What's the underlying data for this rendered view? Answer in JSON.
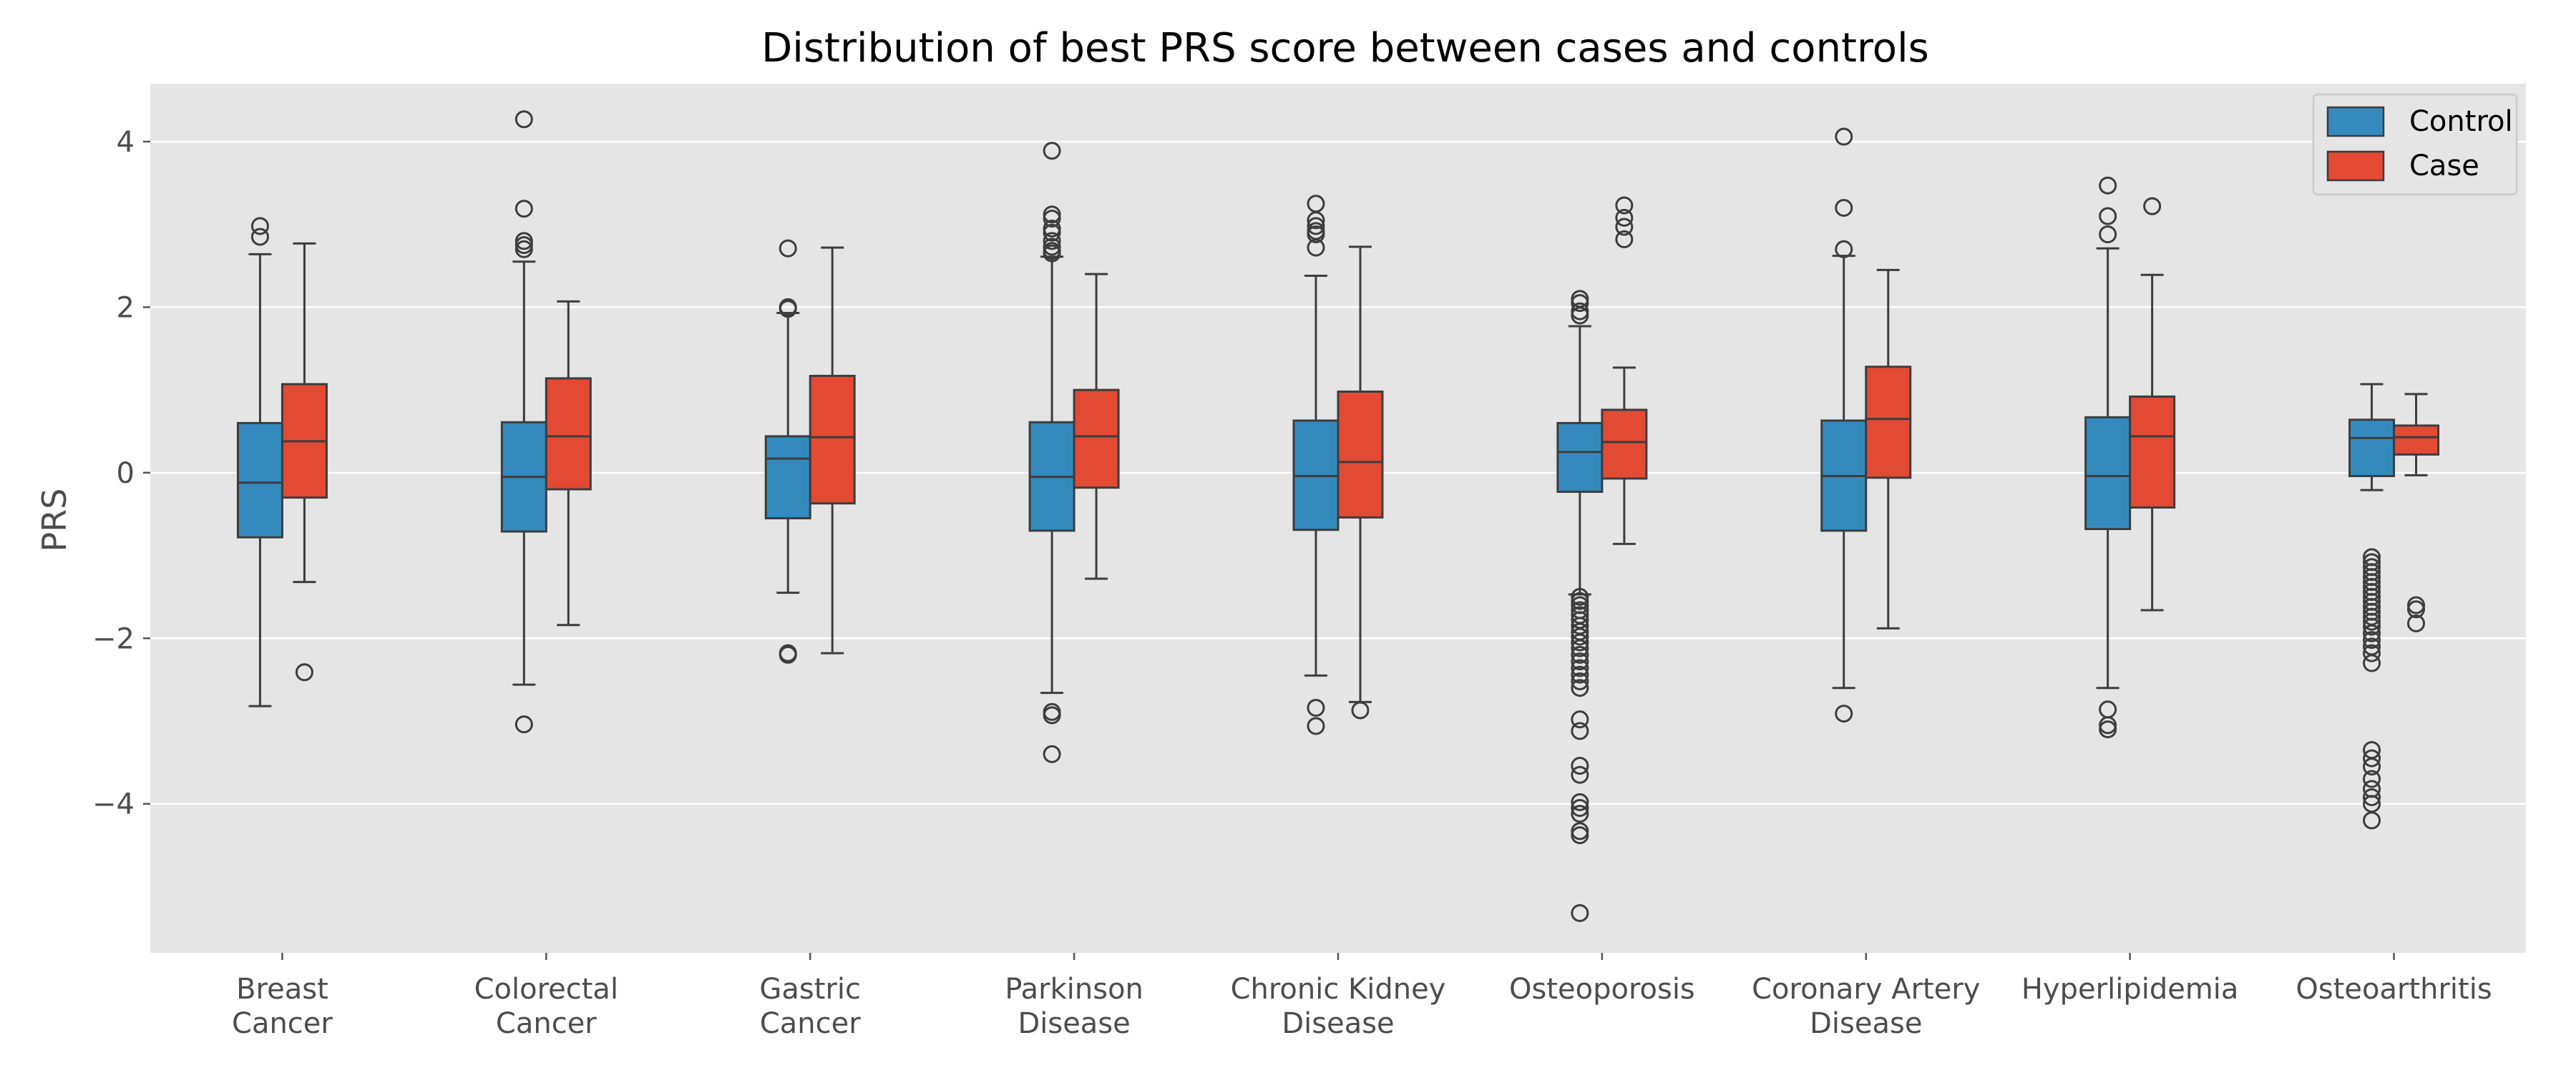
{
  "chart_data": {
    "type": "boxplot",
    "title": "Distribution of best PRS score between cases and controls",
    "xlabel": "",
    "ylabel": "PRS",
    "ylim": [
      -5.8,
      4.7
    ],
    "yticks": [
      4,
      2,
      0,
      -2,
      -4
    ],
    "ytick_labels": [
      "4",
      "2",
      "0",
      "−2",
      "−4"
    ],
    "grid": true,
    "legend_position": "top-right",
    "categories": [
      [
        "Breast",
        "Cancer"
      ],
      [
        "Colorectal",
        "Cancer"
      ],
      [
        "Gastric",
        "Cancer"
      ],
      [
        "Parkinson",
        "Disease"
      ],
      [
        "Chronic Kidney",
        "Disease"
      ],
      [
        "Osteoporosis"
      ],
      [
        "Coronary Artery",
        "Disease"
      ],
      [
        "Hyperlipidemia"
      ],
      [
        "Osteoarthritis"
      ]
    ],
    "series": [
      {
        "name": "Control",
        "color": "#348abd",
        "boxes": [
          {
            "q1": -0.78,
            "median": -0.12,
            "q3": 0.6,
            "whislo": -2.82,
            "whishi": 2.64,
            "fliers": [
              2.98,
              2.85
            ]
          },
          {
            "q1": -0.71,
            "median": -0.05,
            "q3": 0.61,
            "whislo": -2.56,
            "whishi": 2.55,
            "fliers": [
              4.27,
              3.19,
              2.8,
              2.75,
              2.7,
              -3.04
            ]
          },
          {
            "q1": -0.55,
            "median": 0.17,
            "q3": 0.44,
            "whislo": -1.45,
            "whishi": 1.93,
            "fliers": [
              2.71,
              2.0,
              1.98,
              -2.18,
              -2.2
            ]
          },
          {
            "q1": -0.7,
            "median": -0.05,
            "q3": 0.61,
            "whislo": -2.66,
            "whishi": 2.61,
            "fliers": [
              3.89,
              3.12,
              3.07,
              2.95,
              2.9,
              2.8,
              2.73,
              2.68,
              2.65,
              -2.89,
              -2.93,
              -3.4
            ]
          },
          {
            "q1": -0.69,
            "median": -0.04,
            "q3": 0.63,
            "whislo": -2.45,
            "whishi": 2.38,
            "fliers": [
              3.25,
              3.05,
              2.98,
              2.92,
              2.88,
              2.72,
              -2.84,
              -3.06
            ]
          },
          {
            "q1": -0.23,
            "median": 0.25,
            "q3": 0.6,
            "whislo": -1.47,
            "whishi": 1.77,
            "fliers": [
              2.1,
              2.05,
              1.95,
              1.9,
              -1.5,
              -1.55,
              -1.6,
              -1.66,
              -1.72,
              -1.78,
              -1.85,
              -1.92,
              -1.98,
              -2.05,
              -2.12,
              -2.2,
              -2.28,
              -2.36,
              -2.44,
              -2.52,
              -2.6,
              -2.98,
              -3.12,
              -3.54,
              -3.65,
              -3.98,
              -4.05,
              -4.12,
              -4.33,
              -4.38,
              -5.32
            ]
          },
          {
            "q1": -0.7,
            "median": -0.04,
            "q3": 0.63,
            "whislo": -2.6,
            "whishi": 2.62,
            "fliers": [
              4.06,
              3.2,
              2.7,
              -2.91
            ]
          },
          {
            "q1": -0.68,
            "median": -0.04,
            "q3": 0.67,
            "whislo": -2.6,
            "whishi": 2.71,
            "fliers": [
              3.47,
              3.1,
              2.88,
              -2.86,
              -3.05,
              -3.1
            ]
          },
          {
            "q1": -0.04,
            "median": 0.42,
            "q3": 0.64,
            "whislo": -0.21,
            "whishi": 1.07,
            "fliers": [
              -1.02,
              -1.08,
              -1.14,
              -1.2,
              -1.26,
              -1.32,
              -1.38,
              -1.44,
              -1.5,
              -1.56,
              -1.62,
              -1.68,
              -1.74,
              -1.8,
              -1.86,
              -1.94,
              -2.02,
              -2.1,
              -2.18,
              -2.3,
              -3.35,
              -3.45,
              -3.55,
              -3.7,
              -3.82,
              -3.92,
              -4.0,
              -4.2
            ]
          }
        ]
      },
      {
        "name": "Case",
        "color": "#e24a33",
        "boxes": [
          {
            "q1": -0.3,
            "median": 0.38,
            "q3": 1.07,
            "whislo": -1.32,
            "whishi": 2.77,
            "fliers": [
              -2.41
            ]
          },
          {
            "q1": -0.2,
            "median": 0.44,
            "q3": 1.14,
            "whislo": -1.84,
            "whishi": 2.07,
            "fliers": []
          },
          {
            "q1": -0.37,
            "median": 0.43,
            "q3": 1.17,
            "whislo": -2.18,
            "whishi": 2.72,
            "fliers": []
          },
          {
            "q1": -0.18,
            "median": 0.44,
            "q3": 1.0,
            "whislo": -1.28,
            "whishi": 2.4,
            "fliers": []
          },
          {
            "q1": -0.54,
            "median": 0.13,
            "q3": 0.98,
            "whislo": -2.77,
            "whishi": 2.73,
            "fliers": [
              -2.87
            ]
          },
          {
            "q1": -0.07,
            "median": 0.37,
            "q3": 0.76,
            "whislo": -0.86,
            "whishi": 1.27,
            "fliers": [
              3.23,
              3.08,
              2.97,
              2.82
            ]
          },
          {
            "q1": -0.06,
            "median": 0.65,
            "q3": 1.28,
            "whislo": -1.88,
            "whishi": 2.45,
            "fliers": []
          },
          {
            "q1": -0.42,
            "median": 0.44,
            "q3": 0.92,
            "whislo": -1.66,
            "whishi": 2.39,
            "fliers": [
              3.22
            ]
          },
          {
            "q1": 0.22,
            "median": 0.43,
            "q3": 0.57,
            "whislo": -0.03,
            "whishi": 0.95,
            "fliers": [
              -1.6,
              -1.65,
              -1.82
            ]
          }
        ]
      }
    ]
  }
}
